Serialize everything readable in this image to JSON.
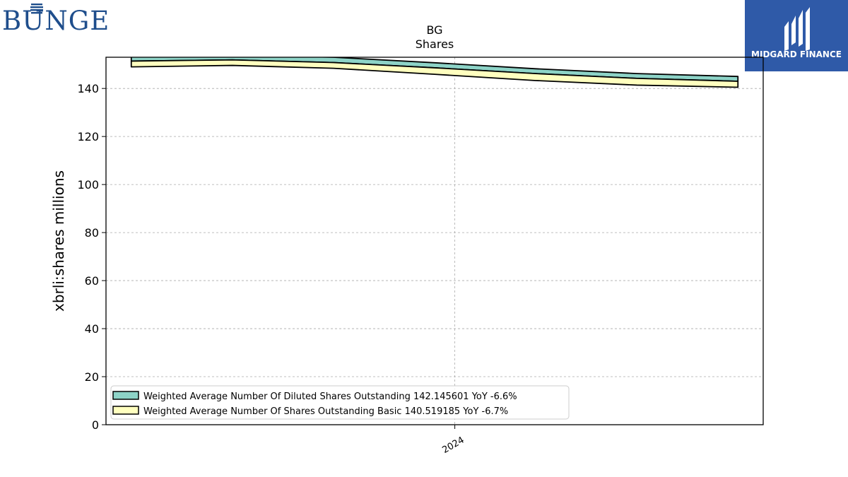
{
  "header": {
    "left_logo_text": "BUNGE",
    "right_logo_text": "MIDGARD FINANCE"
  },
  "colors": {
    "bunge_blue": "#1f4e8c",
    "midgard_blue": "#2f5aa8",
    "diluted_fill": "#8dd3c7",
    "basic_fill": "#ffffbf"
  },
  "chart_data": {
    "type": "area",
    "title": "BG",
    "subtitle": "Shares",
    "ylabel": "xbrli:shares millions",
    "xlabel": "",
    "ylim": [
      0,
      153
    ],
    "yticks": [
      0,
      20,
      40,
      60,
      80,
      100,
      120,
      140
    ],
    "xticks": [
      {
        "label": "2024",
        "x": 3.2
      }
    ],
    "grid": true,
    "legend_position": "lower-left",
    "x": [
      0,
      1,
      2,
      3,
      4,
      5,
      6
    ],
    "series": [
      {
        "name": "Weighted Average Number Of Diluted Shares Outstanding  142.145601 YoY -6.6%",
        "bottom": [
          151.4,
          151.9,
          150.8,
          148.6,
          146.2,
          144.2,
          143.0
        ],
        "top": [
          154.0,
          154.0,
          153.0,
          150.7,
          148.2,
          146.2,
          145.0
        ],
        "color": "#8dd3c7"
      },
      {
        "name": "Weighted Average Number Of Shares Outstanding Basic  140.519185 YoY -6.7%",
        "bottom": [
          149.0,
          149.6,
          148.4,
          145.9,
          143.3,
          141.4,
          140.5
        ],
        "top": [
          151.4,
          151.9,
          150.8,
          148.6,
          146.2,
          144.2,
          143.0
        ],
        "color": "#ffffbf"
      }
    ]
  }
}
